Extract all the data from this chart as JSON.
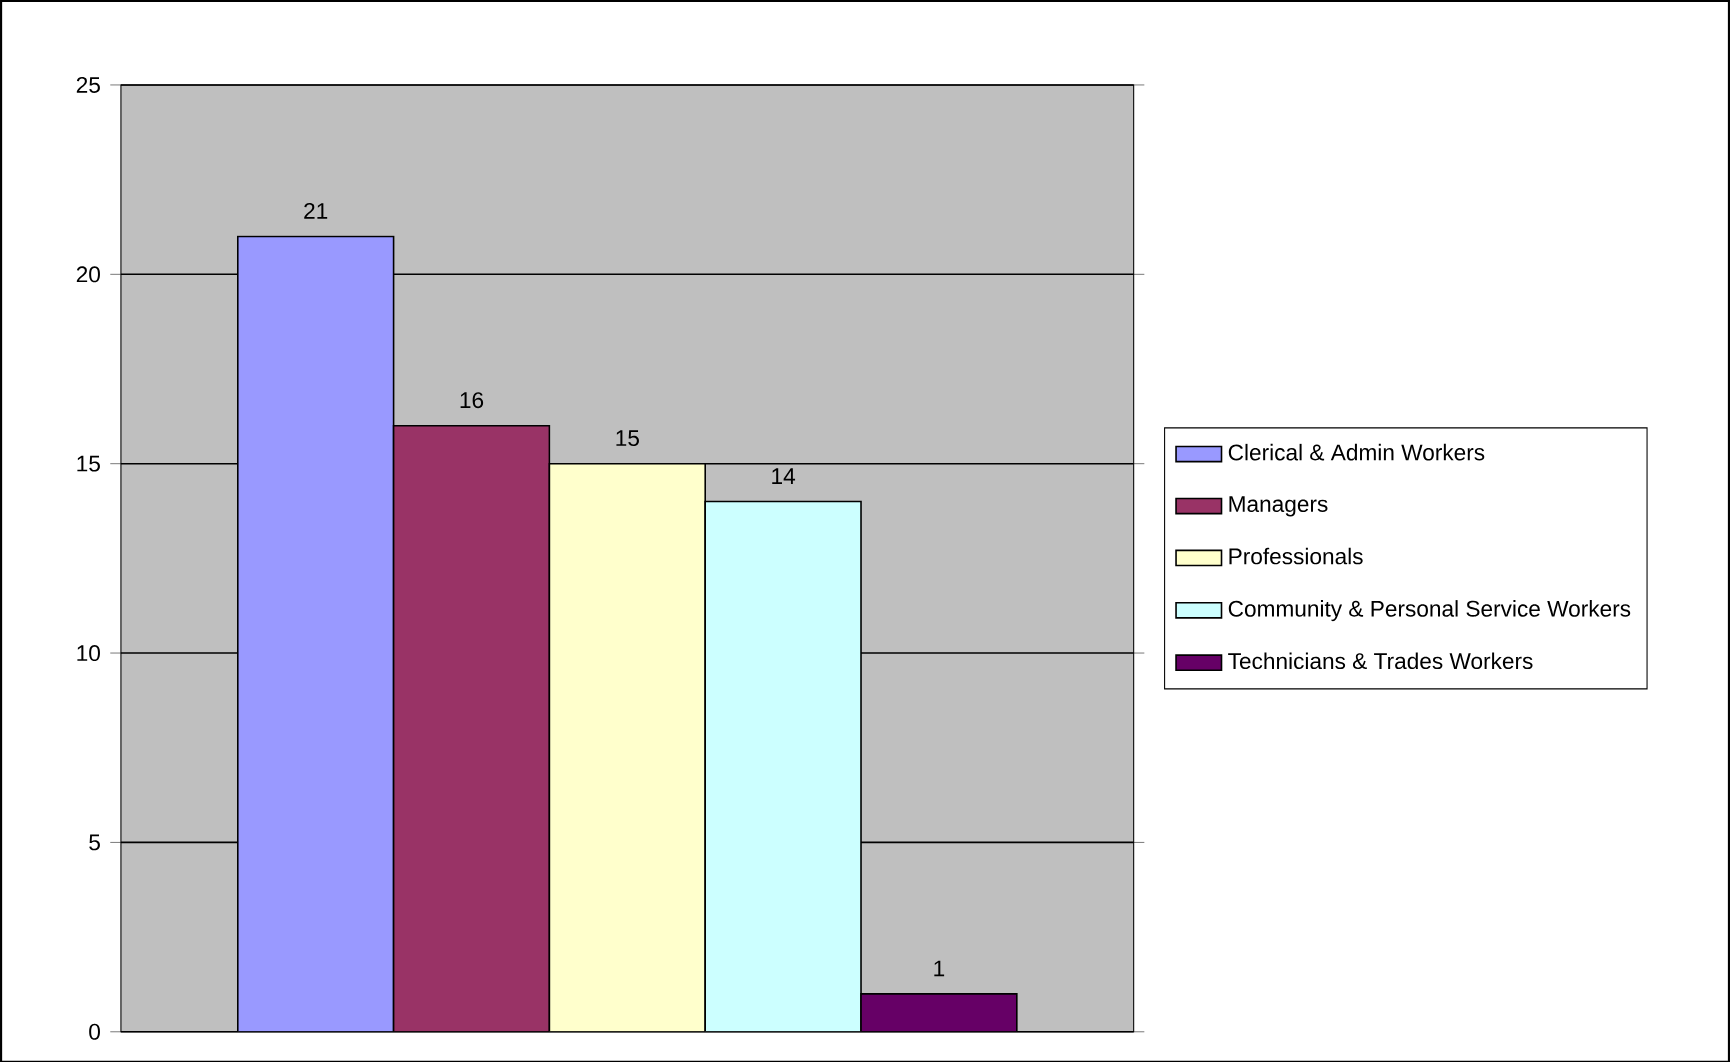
{
  "chart_data": {
    "type": "bar",
    "categories": [
      null
    ],
    "series": [
      {
        "name": "Clerical & Admin Workers",
        "color": "#9999ff",
        "values": [
          21
        ]
      },
      {
        "name": "Managers",
        "color": "#993366",
        "values": [
          16
        ]
      },
      {
        "name": "Professionals",
        "color": "#ffffcc",
        "values": [
          15
        ]
      },
      {
        "name": "Community & Personal Service Workers",
        "color": "#ccffff",
        "values": [
          14
        ]
      },
      {
        "name": "Technicians & Trades Workers",
        "color": "#660066",
        "values": [
          1
        ]
      }
    ],
    "ylim": [
      0,
      25
    ],
    "yticks": [
      0,
      5,
      10,
      15,
      20,
      25
    ],
    "grid": "y",
    "legend": "right",
    "data_labels": true
  }
}
